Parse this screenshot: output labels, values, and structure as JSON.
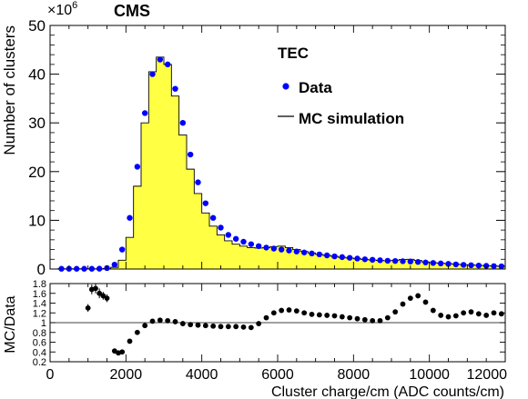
{
  "chart_data": [
    {
      "type": "histogram",
      "experiment_label": "CMS",
      "exponent_label": "×10",
      "exponent_power": "6",
      "panel_label": "TEC",
      "ylabel": "Number of clusters",
      "xlim": [
        0,
        12000
      ],
      "ylim": [
        0,
        50
      ],
      "y_scale": 1000000,
      "y_ticks": [
        "0",
        "10",
        "20",
        "30",
        "40",
        "50"
      ],
      "legend": {
        "position": "top-right",
        "items": [
          {
            "label": "Data",
            "marker": "filled-circle",
            "color": "#0000ff"
          },
          {
            "label": "MC simulation",
            "marker": "line-fill",
            "color": "#000000",
            "fill": "#ffff44"
          }
        ]
      },
      "bin_width": 200,
      "data_points": {
        "name": "Data",
        "x": [
          300,
          500,
          700,
          900,
          1100,
          1300,
          1500,
          1700,
          1900,
          2100,
          2300,
          2500,
          2700,
          2900,
          3100,
          3300,
          3500,
          3700,
          3900,
          4100,
          4300,
          4500,
          4700,
          4900,
          5100,
          5300,
          5500,
          5700,
          5900,
          6100,
          6300,
          6500,
          6700,
          6900,
          7100,
          7300,
          7500,
          7700,
          7900,
          8100,
          8300,
          8500,
          8700,
          8900,
          9100,
          9300,
          9500,
          9700,
          9900,
          10100,
          10300,
          10500,
          10700,
          10900,
          11100,
          11300,
          11500,
          11700,
          11900
        ],
        "y": [
          0.05,
          0.05,
          0.05,
          0.05,
          0.05,
          0.07,
          0.2,
          0.9,
          4.0,
          10.5,
          21.0,
          32.0,
          40.0,
          43.0,
          42.0,
          37.0,
          30.0,
          23.5,
          17.8,
          13.5,
          10.5,
          8.5,
          7.0,
          6.2,
          5.6,
          5.1,
          4.7,
          4.4,
          4.2,
          4.0,
          3.8,
          3.6,
          3.4,
          3.2,
          3.0,
          2.8,
          2.6,
          2.45,
          2.3,
          2.15,
          2.0,
          1.9,
          1.8,
          1.7,
          1.65,
          1.6,
          1.55,
          1.45,
          1.35,
          1.25,
          1.15,
          1.05,
          0.95,
          0.85,
          0.78,
          0.72,
          0.66,
          0.6,
          0.55
        ]
      },
      "mc_histogram": {
        "name": "MC simulation",
        "bin_edges_start": 200,
        "values": [
          0.05,
          0.05,
          0.05,
          0.05,
          0.05,
          0.05,
          0.1,
          0.35,
          1.8,
          6.5,
          17.0,
          30.0,
          40.5,
          43.5,
          42.0,
          35.5,
          27.5,
          20.5,
          15.5,
          11.5,
          8.8,
          7.0,
          5.8,
          5.1,
          4.7,
          4.4,
          4.3,
          4.4,
          4.6,
          4.7,
          4.4,
          4.0,
          3.6,
          3.3,
          3.0,
          2.8,
          2.6,
          2.4,
          2.25,
          2.1,
          1.95,
          1.85,
          1.75,
          1.7,
          1.8,
          1.95,
          2.0,
          1.75,
          1.45,
          1.3,
          1.2,
          1.1,
          1.0,
          0.9,
          0.82,
          0.75,
          0.68,
          0.62,
          0.56
        ]
      }
    },
    {
      "type": "scatter",
      "ylabel": "MC/Data",
      "xlabel": "Cluster charge/cm (ADC counts/cm)",
      "xlim": [
        0,
        12000
      ],
      "ylim": [
        0.2,
        1.8
      ],
      "x_ticks": [
        "0",
        "2000",
        "4000",
        "6000",
        "8000",
        "10000",
        "12000"
      ],
      "y_ticks": [
        "0.2",
        "0.4",
        "0.6",
        "0.8",
        "1",
        "1.2",
        "1.4",
        "1.6",
        "1.8"
      ],
      "reference_line": 1,
      "series": {
        "x": [
          1000,
          1100,
          1200,
          1300,
          1400,
          1500,
          1700,
          1800,
          1900,
          2100,
          2300,
          2500,
          2700,
          2900,
          3100,
          3300,
          3500,
          3700,
          3900,
          4100,
          4300,
          4500,
          4700,
          4900,
          5100,
          5300,
          5500,
          5700,
          5900,
          6100,
          6300,
          6500,
          6700,
          6900,
          7100,
          7300,
          7500,
          7700,
          7900,
          8100,
          8300,
          8500,
          8700,
          8900,
          9100,
          9300,
          9500,
          9700,
          9900,
          10100,
          10300,
          10500,
          10700,
          10900,
          11100,
          11300,
          11500,
          11700,
          11900
        ],
        "y": [
          1.3,
          1.68,
          1.7,
          1.6,
          1.55,
          1.5,
          0.42,
          0.38,
          0.4,
          0.62,
          0.8,
          0.94,
          1.03,
          1.05,
          1.04,
          1.02,
          0.98,
          0.96,
          0.95,
          0.94,
          0.93,
          0.92,
          0.92,
          0.92,
          0.91,
          0.9,
          0.98,
          1.1,
          1.2,
          1.25,
          1.26,
          1.24,
          1.2,
          1.17,
          1.16,
          1.15,
          1.14,
          1.12,
          1.1,
          1.08,
          1.06,
          1.04,
          1.04,
          1.1,
          1.22,
          1.38,
          1.5,
          1.55,
          1.42,
          1.25,
          1.15,
          1.12,
          1.14,
          1.2,
          1.22,
          1.18,
          1.15,
          1.2,
          1.18
        ],
        "errors": [
          0.08,
          0.1,
          0.1,
          0.1,
          0.08,
          0.08,
          0.02,
          0.02,
          0.02,
          0.01,
          0.01,
          0.01,
          0.01,
          0.01,
          0.01,
          0.01,
          0.01,
          0.01,
          0.01,
          0.01,
          0.01,
          0.01,
          0.01,
          0.01,
          0.01,
          0.01,
          0.01,
          0.01,
          0.01,
          0.01,
          0.01,
          0.01,
          0.01,
          0.01,
          0.01,
          0.01,
          0.01,
          0.01,
          0.01,
          0.01,
          0.01,
          0.01,
          0.01,
          0.01,
          0.01,
          0.01,
          0.01,
          0.01,
          0.01,
          0.01,
          0.01,
          0.01,
          0.01,
          0.01,
          0.01,
          0.01,
          0.01,
          0.01,
          0.01
        ]
      }
    }
  ]
}
